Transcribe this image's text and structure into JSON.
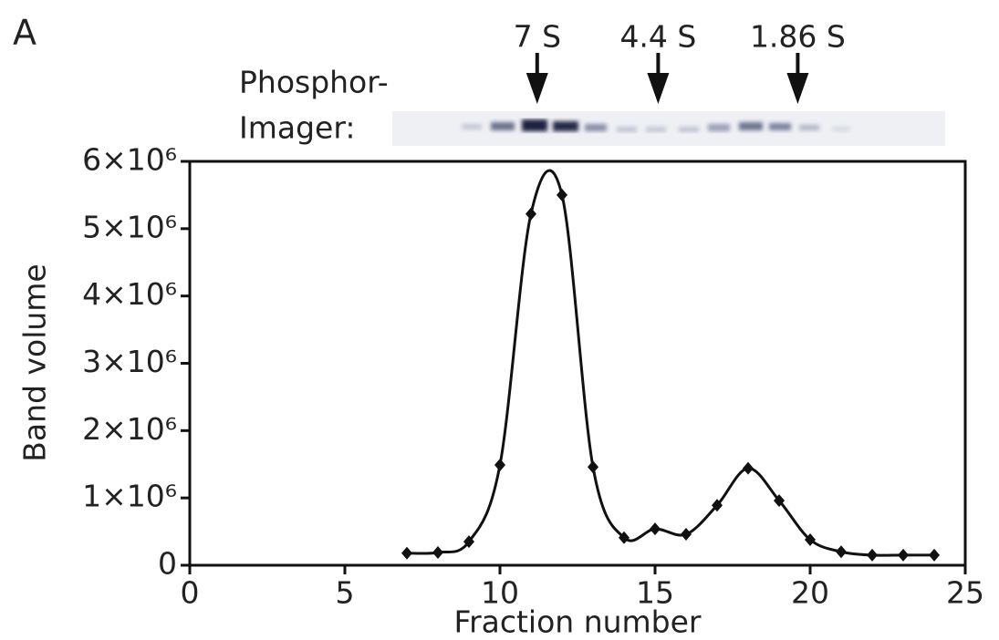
{
  "chart_data": {
    "type": "line",
    "panel_label": "A",
    "gel_label_line1": "Phosphor-",
    "gel_label_line2": "Imager:",
    "markers": [
      {
        "label": "7 S",
        "x": 11.2
      },
      {
        "label": "4.4 S",
        "x": 15.1
      },
      {
        "label": "1.86 S",
        "x": 19.6
      }
    ],
    "x_label": "Fraction number",
    "y_label": "Band volume",
    "x": [
      7,
      8,
      9,
      10,
      11,
      12,
      13,
      14,
      15,
      16,
      17,
      18,
      19,
      20,
      21,
      22,
      23,
      24
    ],
    "series": [
      {
        "name": "Band volume",
        "color": "#111111",
        "values": [
          180000,
          190000,
          350000,
          1490000,
          5220000,
          5500000,
          1460000,
          410000,
          540000,
          460000,
          890000,
          1440000,
          960000,
          380000,
          200000,
          150000,
          150000,
          150000
        ]
      }
    ],
    "xlim": [
      0,
      25
    ],
    "xticks": [
      0,
      5,
      10,
      15,
      20,
      25
    ],
    "ylim": [
      0,
      6000000
    ],
    "yticks": [
      0,
      {
        "value": 1000000,
        "label": "1×10⁶"
      },
      {
        "value": 2000000,
        "label": "2×10⁶"
      },
      {
        "value": 3000000,
        "label": "3×10⁶"
      },
      {
        "value": 4000000,
        "label": "4×10⁶"
      },
      {
        "value": 5000000,
        "label": "5×10⁶"
      },
      {
        "value": 6000000,
        "label": "6×10⁶"
      }
    ]
  }
}
